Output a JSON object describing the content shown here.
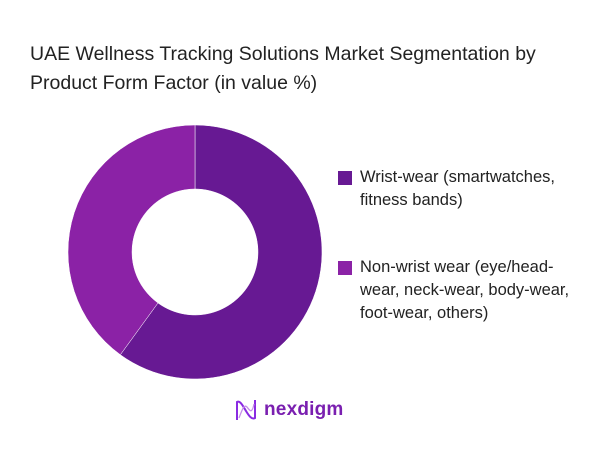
{
  "chart_data": {
    "type": "pie",
    "title": "UAE Wellness Tracking Solutions Market Segmentation by Product Form Factor (in value %)",
    "donut": true,
    "legend_position": "right",
    "categories": [
      "Wrist-wear (smartwatches, fitness bands)",
      "Non-wrist wear (eye/head-wear, neck-wear, body-wear, foot-wear, others)"
    ],
    "values": [
      60,
      40
    ],
    "colors": [
      "#671993",
      "#8B22A6"
    ]
  },
  "brand": {
    "name": "nexdigm"
  }
}
